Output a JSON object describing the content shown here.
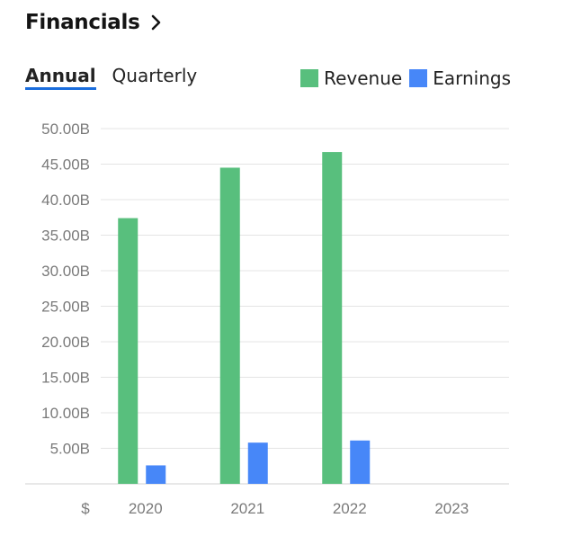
{
  "header": {
    "title": "Financials"
  },
  "tabs": [
    {
      "label": "Annual",
      "active": true
    },
    {
      "label": "Quarterly",
      "active": false
    }
  ],
  "colors": {
    "revenue": "#58bf7d",
    "earnings": "#4787f8",
    "accent": "#1a6ddd",
    "grid": "#e4e4e4"
  },
  "chart_data": {
    "type": "bar",
    "categories": [
      "2020",
      "2021",
      "2022",
      "2023"
    ],
    "series": [
      {
        "name": "Revenue",
        "values": [
          37.4,
          44.5,
          46.7,
          null
        ]
      },
      {
        "name": "Earnings",
        "values": [
          2.6,
          5.8,
          6.1,
          null
        ]
      }
    ],
    "yticks": [
      "5.00B",
      "10.00B",
      "15.00B",
      "20.00B",
      "25.00B",
      "30.00B",
      "35.00B",
      "40.00B",
      "45.00B",
      "50.00B"
    ],
    "ytick_values": [
      5,
      10,
      15,
      20,
      25,
      30,
      35,
      40,
      45,
      50
    ],
    "ylim": [
      0,
      50
    ],
    "y_unit_label": "$",
    "legend_position": "top-right",
    "grid": true
  }
}
